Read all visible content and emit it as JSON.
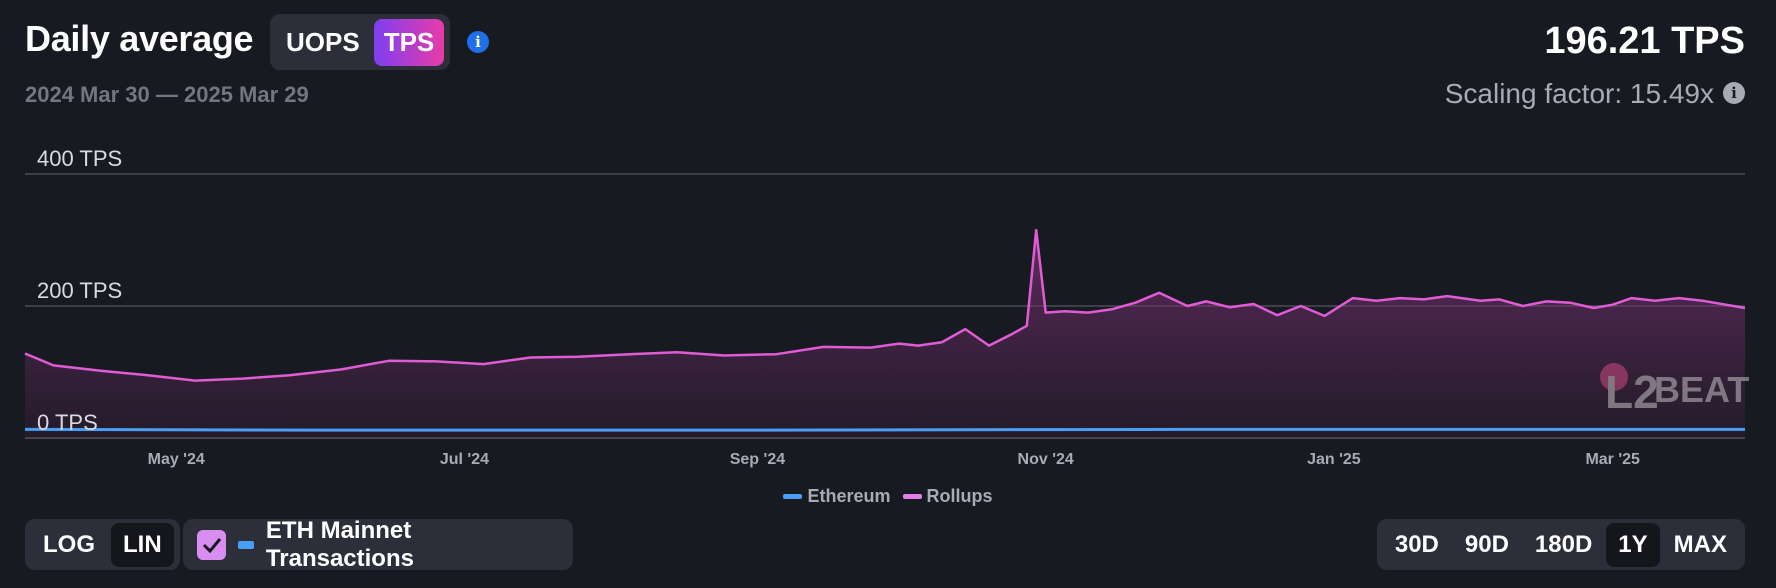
{
  "header": {
    "title": "Daily average",
    "metric_options": [
      "UOPS",
      "TPS"
    ],
    "metric_selected": "TPS",
    "date_range": "2024 Mar 30 — 2025 Mar 29",
    "value": "196.21 TPS",
    "scaling_factor": "Scaling factor: 15.49x"
  },
  "controls": {
    "scale_options": [
      "LOG",
      "LIN"
    ],
    "scale_selected": "LIN",
    "eth_toggle_label": "ETH Mainnet Transactions",
    "eth_toggle_checked": true,
    "range_options": [
      "30D",
      "90D",
      "180D",
      "1Y",
      "MAX"
    ],
    "range_selected": "1Y"
  },
  "chart_data": {
    "type": "area",
    "x_range": [
      "2024-03-30",
      "2025-03-29"
    ],
    "y_range": [
      0,
      400
    ],
    "grid": true,
    "y_ticks": [
      "0 TPS",
      "200 TPS",
      "400 TPS"
    ],
    "y_tick_values": [
      0,
      200,
      400
    ],
    "x_ticks": [
      {
        "label": "May '24",
        "date": "2024-05-01"
      },
      {
        "label": "Jul '24",
        "date": "2024-07-01"
      },
      {
        "label": "Sep '24",
        "date": "2024-09-01"
      },
      {
        "label": "Nov '24",
        "date": "2024-11-01"
      },
      {
        "label": "Jan '25",
        "date": "2025-01-01"
      },
      {
        "label": "Mar '25",
        "date": "2025-03-01"
      }
    ],
    "legend": [
      "Ethereum",
      "Rollups"
    ],
    "colors": {
      "Ethereum": "#4a9ef5",
      "Rollups": "#e05cd4"
    },
    "series": [
      {
        "name": "Rollups",
        "x": [
          "2024-03-30",
          "2024-04-05",
          "2024-04-15",
          "2024-04-25",
          "2024-05-05",
          "2024-05-15",
          "2024-05-25",
          "2024-06-05",
          "2024-06-15",
          "2024-06-25",
          "2024-07-05",
          "2024-07-15",
          "2024-07-25",
          "2024-08-05",
          "2024-08-15",
          "2024-08-25",
          "2024-09-05",
          "2024-09-15",
          "2024-09-25",
          "2024-10-01",
          "2024-10-05",
          "2024-10-10",
          "2024-10-15",
          "2024-10-20",
          "2024-10-25",
          "2024-10-28",
          "2024-10-30",
          "2024-11-01",
          "2024-11-05",
          "2024-11-10",
          "2024-11-15",
          "2024-11-20",
          "2024-11-25",
          "2024-12-01",
          "2024-12-05",
          "2024-12-10",
          "2024-12-15",
          "2024-12-20",
          "2024-12-25",
          "2024-12-30",
          "2025-01-05",
          "2025-01-10",
          "2025-01-15",
          "2025-01-20",
          "2025-01-25",
          "2025-02-01",
          "2025-02-05",
          "2025-02-10",
          "2025-02-15",
          "2025-02-20",
          "2025-02-25",
          "2025-03-01",
          "2025-03-05",
          "2025-03-10",
          "2025-03-15",
          "2025-03-20",
          "2025-03-29"
        ],
        "values": [
          128,
          110,
          102,
          95,
          87,
          90,
          95,
          104,
          117,
          116,
          112,
          122,
          123,
          127,
          130,
          125,
          127,
          138,
          137,
          143,
          140,
          145,
          165,
          140,
          158,
          170,
          315,
          190,
          192,
          190,
          195,
          205,
          220,
          200,
          207,
          198,
          203,
          186,
          200,
          185,
          212,
          208,
          212,
          210,
          215,
          208,
          210,
          200,
          207,
          205,
          197,
          202,
          212,
          208,
          212,
          208,
          197
        ]
      },
      {
        "name": "Ethereum",
        "x": [
          "2024-03-30",
          "2024-06-01",
          "2024-09-01",
          "2024-12-01",
          "2025-03-29"
        ],
        "values": [
          13,
          12,
          12,
          13,
          13
        ]
      }
    ]
  }
}
